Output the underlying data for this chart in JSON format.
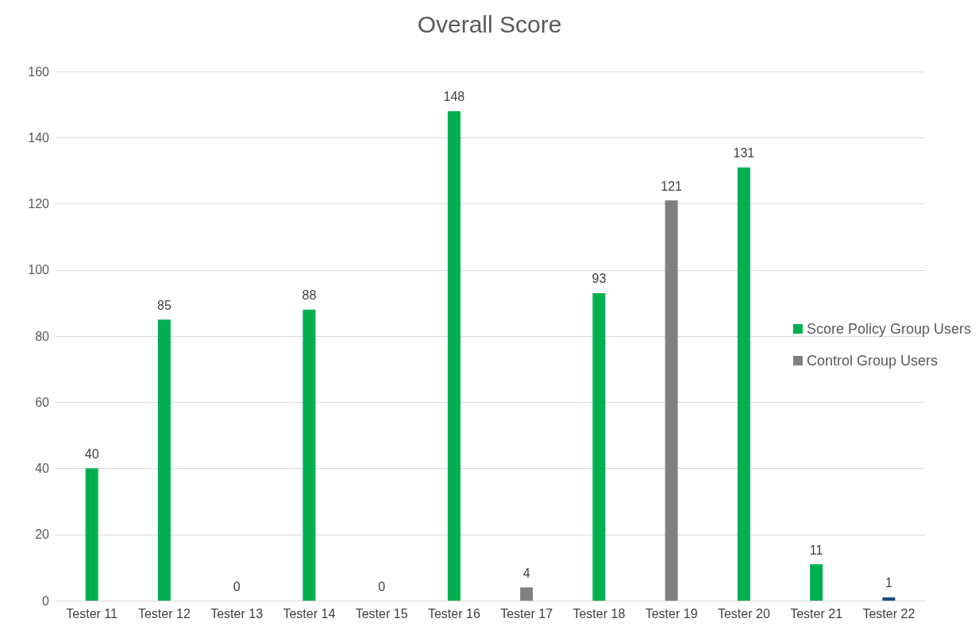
{
  "chart_data": {
    "type": "bar",
    "title": "Overall Score",
    "categories": [
      "Tester 11",
      "Tester 12",
      "Tester 13",
      "Tester 14",
      "Tester 15",
      "Tester 16",
      "Tester 17",
      "Tester 18",
      "Tester 19",
      "Tester 20",
      "Tester 21",
      "Tester 22"
    ],
    "series": [
      {
        "name": "Score Policy Group Users",
        "color": "#00b050",
        "values": [
          40,
          85,
          null,
          88,
          null,
          148,
          null,
          93,
          null,
          131,
          11,
          null
        ]
      },
      {
        "name": "Control Group Users",
        "color": "#808080",
        "values": [
          null,
          null,
          0,
          null,
          0,
          null,
          4,
          null,
          121,
          null,
          null,
          1
        ],
        "colors": [
          null,
          null,
          "#808080",
          null,
          "#808080",
          null,
          "#808080",
          null,
          "#808080",
          null,
          null,
          "#1f4e79"
        ]
      }
    ],
    "ylim": [
      0,
      160
    ],
    "yticks": [
      0,
      20,
      40,
      60,
      80,
      100,
      120,
      140,
      160
    ],
    "grid": "y",
    "legend": "right",
    "data_labels": true
  }
}
